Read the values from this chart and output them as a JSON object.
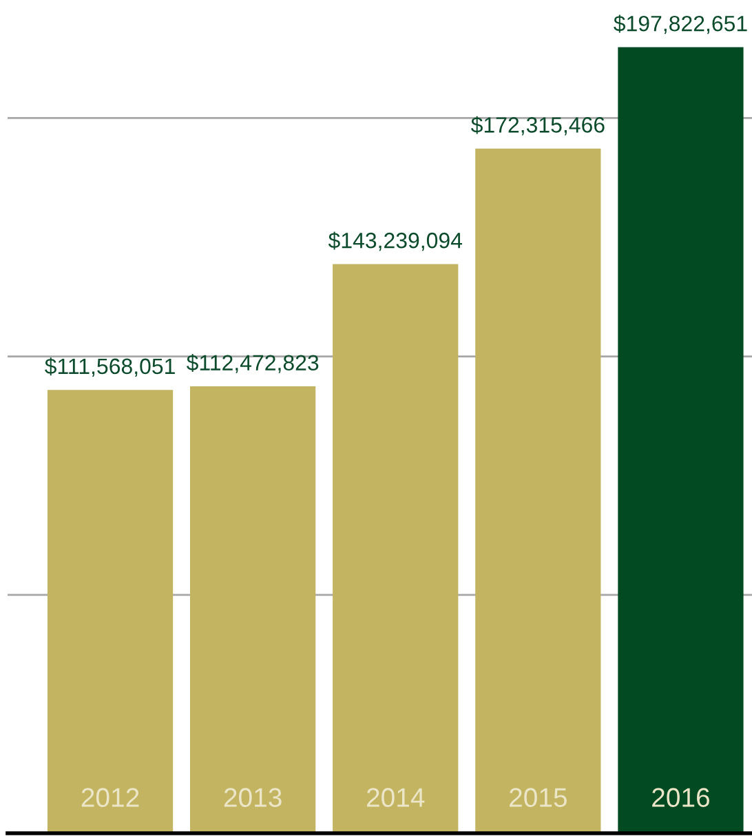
{
  "chart_data": {
    "type": "bar",
    "categories": [
      "2012",
      "2013",
      "2014",
      "2015",
      "2016"
    ],
    "values": [
      111568051,
      112472823,
      143239094,
      172315466,
      197822651
    ],
    "colors": [
      "#c3b462",
      "#c3b462",
      "#c3b462",
      "#c3b462",
      "#024a22"
    ],
    "value_labels": [
      "$111,568,051",
      "$112,472,823",
      "$143,239,094",
      "$172,315,466",
      "$197,822,651"
    ],
    "grid": "y"
  }
}
